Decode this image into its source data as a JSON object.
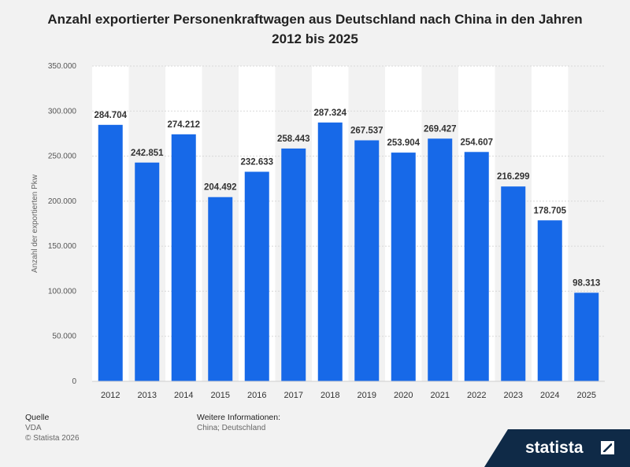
{
  "title": "Anzahl exportierter Personenkraftwagen aus Deutschland nach China in den Jahren 2012 bis 2025",
  "footer": {
    "source_heading": "Quelle",
    "source": "VDA",
    "copyright": "© Statista 2026",
    "info_heading": "Weitere Informationen:",
    "info": "China; Deutschland"
  },
  "brand": "statista",
  "colors": {
    "bar": "#1769e8",
    "band": "#ffffff",
    "background": "#f2f2f2"
  },
  "chart_data": {
    "type": "bar",
    "categories": [
      "2012",
      "2013",
      "2014",
      "2015",
      "2016",
      "2017",
      "2018",
      "2019",
      "2020",
      "2021",
      "2022",
      "2023",
      "2024",
      "2025"
    ],
    "values": [
      284704,
      242851,
      274212,
      204492,
      232633,
      258443,
      287324,
      267537,
      253904,
      269427,
      254607,
      216299,
      178705,
      98313
    ],
    "value_labels": [
      "284.704",
      "242.851",
      "274.212",
      "204.492",
      "232.633",
      "258.443",
      "287.324",
      "267.537",
      "253.904",
      "269.427",
      "254.607",
      "216.299",
      "178.705",
      "98.313"
    ],
    "ylabel": "Anzahl der exportierten Pkw",
    "xlabel": "",
    "ylim": [
      0,
      350000
    ],
    "yticks": [
      0,
      50000,
      100000,
      150000,
      200000,
      250000,
      300000,
      350000
    ],
    "ytick_labels": [
      "0",
      "50.000",
      "100.000",
      "150.000",
      "200.000",
      "250.000",
      "300.000",
      "350.000"
    ],
    "grid": true
  }
}
